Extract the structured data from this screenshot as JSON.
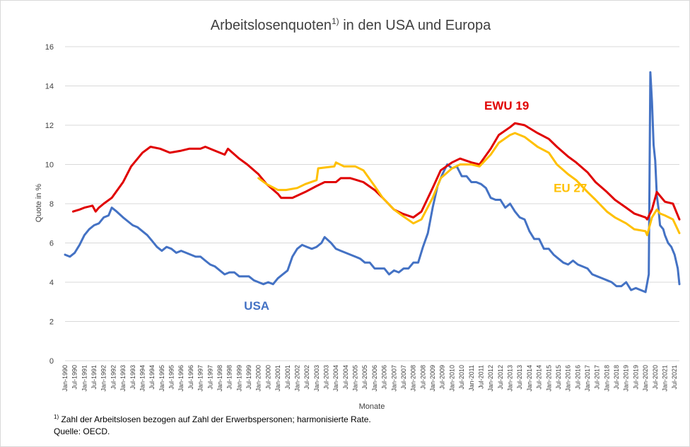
{
  "chart_data": {
    "type": "line",
    "title": "Arbeitslosenquoten",
    "title_sup": "1)",
    "title_suffix": " in den USA und Europa",
    "xlabel": "Monate",
    "ylabel": "Quote in %",
    "ylim": [
      0,
      16
    ],
    "yticks": [
      0,
      2,
      4,
      6,
      8,
      10,
      12,
      14,
      16
    ],
    "grid": "horizontal",
    "xtick_labels": [
      "Jan-1990",
      "Jul-1990",
      "Jan-1991",
      "Jul-1991",
      "Jan-1992",
      "Jul-1992",
      "Jan-1993",
      "Jul-1993",
      "Jan-1994",
      "Jul-1994",
      "Jan-1995",
      "Jul-1995",
      "Jan-1996",
      "Jul-1996",
      "Jan-1997",
      "Jul-1997",
      "Jan-1998",
      "Jul-1998",
      "Jan-1999",
      "Jul-1999",
      "Jan-2000",
      "Jul-2000",
      "Jan-2001",
      "Jul-2001",
      "Jan-2002",
      "Jul-2002",
      "Jan-2003",
      "Jul-2003",
      "Jan-2004",
      "Jul-2004",
      "Jan-2005",
      "Jul-2005",
      "Jan-2006",
      "Jul-2006",
      "Jan-2007",
      "Jul-2007",
      "Jan-2008",
      "Jul-2008",
      "Jan-2009",
      "Jul-2009",
      "Jan-2010",
      "Jul-2010",
      "Jan-2011",
      "Jul-2011",
      "Jan-2012",
      "Jul-2012",
      "Jan-2013",
      "Jul-2013",
      "Jan-2014",
      "Jul-2014",
      "Jan-2015",
      "Jul-2015",
      "Jan-2016",
      "Jul-2016",
      "Jan-2017",
      "Jul-2017",
      "Jan-2018",
      "Jul-2018",
      "Jan-2019",
      "Jul-2019",
      "Jan-2020",
      "Jul-2020",
      "Jan-2021",
      "Jul-2021"
    ],
    "x_start": "1990-01",
    "x_end": "2021-10",
    "series": [
      {
        "name": "USA",
        "color": "#4472c4",
        "points": [
          [
            "1990-01",
            5.4
          ],
          [
            "1990-04",
            5.3
          ],
          [
            "1990-07",
            5.5
          ],
          [
            "1990-10",
            5.9
          ],
          [
            "1991-01",
            6.4
          ],
          [
            "1991-04",
            6.7
          ],
          [
            "1991-07",
            6.9
          ],
          [
            "1991-10",
            7.0
          ],
          [
            "1992-01",
            7.3
          ],
          [
            "1992-04",
            7.4
          ],
          [
            "1992-06",
            7.8
          ],
          [
            "1992-09",
            7.6
          ],
          [
            "1993-01",
            7.3
          ],
          [
            "1993-04",
            7.1
          ],
          [
            "1993-07",
            6.9
          ],
          [
            "1993-10",
            6.8
          ],
          [
            "1994-01",
            6.6
          ],
          [
            "1994-04",
            6.4
          ],
          [
            "1994-07",
            6.1
          ],
          [
            "1994-10",
            5.8
          ],
          [
            "1995-01",
            5.6
          ],
          [
            "1995-04",
            5.8
          ],
          [
            "1995-07",
            5.7
          ],
          [
            "1995-10",
            5.5
          ],
          [
            "1996-01",
            5.6
          ],
          [
            "1996-04",
            5.5
          ],
          [
            "1996-07",
            5.4
          ],
          [
            "1996-10",
            5.3
          ],
          [
            "1997-01",
            5.3
          ],
          [
            "1997-04",
            5.1
          ],
          [
            "1997-07",
            4.9
          ],
          [
            "1997-10",
            4.8
          ],
          [
            "1998-01",
            4.6
          ],
          [
            "1998-04",
            4.4
          ],
          [
            "1998-07",
            4.5
          ],
          [
            "1998-10",
            4.5
          ],
          [
            "1999-01",
            4.3
          ],
          [
            "1999-04",
            4.3
          ],
          [
            "1999-07",
            4.3
          ],
          [
            "1999-10",
            4.1
          ],
          [
            "2000-01",
            4.0
          ],
          [
            "2000-04",
            3.9
          ],
          [
            "2000-07",
            4.0
          ],
          [
            "2000-10",
            3.9
          ],
          [
            "2001-01",
            4.2
          ],
          [
            "2001-04",
            4.4
          ],
          [
            "2001-07",
            4.6
          ],
          [
            "2001-10",
            5.3
          ],
          [
            "2002-01",
            5.7
          ],
          [
            "2002-04",
            5.9
          ],
          [
            "2002-07",
            5.8
          ],
          [
            "2002-10",
            5.7
          ],
          [
            "2003-01",
            5.8
          ],
          [
            "2003-04",
            6.0
          ],
          [
            "2003-06",
            6.3
          ],
          [
            "2003-10",
            6.0
          ],
          [
            "2004-01",
            5.7
          ],
          [
            "2004-04",
            5.6
          ],
          [
            "2004-07",
            5.5
          ],
          [
            "2004-10",
            5.4
          ],
          [
            "2005-01",
            5.3
          ],
          [
            "2005-04",
            5.2
          ],
          [
            "2005-07",
            5.0
          ],
          [
            "2005-10",
            5.0
          ],
          [
            "2006-01",
            4.7
          ],
          [
            "2006-04",
            4.7
          ],
          [
            "2006-07",
            4.7
          ],
          [
            "2006-10",
            4.4
          ],
          [
            "2007-01",
            4.6
          ],
          [
            "2007-04",
            4.5
          ],
          [
            "2007-07",
            4.7
          ],
          [
            "2007-10",
            4.7
          ],
          [
            "2008-01",
            5.0
          ],
          [
            "2008-04",
            5.0
          ],
          [
            "2008-07",
            5.8
          ],
          [
            "2008-10",
            6.5
          ],
          [
            "2009-01",
            7.8
          ],
          [
            "2009-04",
            8.9
          ],
          [
            "2009-07",
            9.5
          ],
          [
            "2009-10",
            10.0
          ],
          [
            "2010-01",
            9.8
          ],
          [
            "2010-04",
            9.9
          ],
          [
            "2010-07",
            9.4
          ],
          [
            "2010-10",
            9.4
          ],
          [
            "2011-01",
            9.1
          ],
          [
            "2011-04",
            9.1
          ],
          [
            "2011-07",
            9.0
          ],
          [
            "2011-10",
            8.8
          ],
          [
            "2012-01",
            8.3
          ],
          [
            "2012-04",
            8.2
          ],
          [
            "2012-07",
            8.2
          ],
          [
            "2012-10",
            7.8
          ],
          [
            "2013-01",
            8.0
          ],
          [
            "2013-04",
            7.6
          ],
          [
            "2013-07",
            7.3
          ],
          [
            "2013-10",
            7.2
          ],
          [
            "2014-01",
            6.6
          ],
          [
            "2014-04",
            6.2
          ],
          [
            "2014-07",
            6.2
          ],
          [
            "2014-10",
            5.7
          ],
          [
            "2015-01",
            5.7
          ],
          [
            "2015-04",
            5.4
          ],
          [
            "2015-07",
            5.2
          ],
          [
            "2015-10",
            5.0
          ],
          [
            "2016-01",
            4.9
          ],
          [
            "2016-04",
            5.1
          ],
          [
            "2016-07",
            4.9
          ],
          [
            "2016-10",
            4.8
          ],
          [
            "2017-01",
            4.7
          ],
          [
            "2017-04",
            4.4
          ],
          [
            "2017-07",
            4.3
          ],
          [
            "2017-10",
            4.2
          ],
          [
            "2018-01",
            4.1
          ],
          [
            "2018-04",
            4.0
          ],
          [
            "2018-07",
            3.8
          ],
          [
            "2018-10",
            3.8
          ],
          [
            "2019-01",
            4.0
          ],
          [
            "2019-04",
            3.6
          ],
          [
            "2019-07",
            3.7
          ],
          [
            "2019-10",
            3.6
          ],
          [
            "2020-01",
            3.5
          ],
          [
            "2020-03",
            4.4
          ],
          [
            "2020-04",
            14.7
          ],
          [
            "2020-05",
            13.2
          ],
          [
            "2020-06",
            11.0
          ],
          [
            "2020-07",
            10.2
          ],
          [
            "2020-08",
            8.4
          ],
          [
            "2020-09",
            7.8
          ],
          [
            "2020-10",
            6.9
          ],
          [
            "2020-12",
            6.7
          ],
          [
            "2021-01",
            6.4
          ],
          [
            "2021-03",
            6.0
          ],
          [
            "2021-05",
            5.8
          ],
          [
            "2021-07",
            5.4
          ],
          [
            "2021-09",
            4.7
          ],
          [
            "2021-10",
            3.9
          ]
        ]
      },
      {
        "name": "EWU 19",
        "color": "#e00000",
        "points": [
          [
            "1990-06",
            7.6
          ],
          [
            "1990-10",
            7.7
          ],
          [
            "1991-01",
            7.8
          ],
          [
            "1991-06",
            7.9
          ],
          [
            "1991-08",
            7.6
          ],
          [
            "1991-10",
            7.8
          ],
          [
            "1992-01",
            8.0
          ],
          [
            "1992-06",
            8.3
          ],
          [
            "1993-01",
            9.1
          ],
          [
            "1993-06",
            9.9
          ],
          [
            "1994-01",
            10.6
          ],
          [
            "1994-06",
            10.9
          ],
          [
            "1994-12",
            10.8
          ],
          [
            "1995-06",
            10.6
          ],
          [
            "1996-01",
            10.7
          ],
          [
            "1996-06",
            10.8
          ],
          [
            "1997-01",
            10.8
          ],
          [
            "1997-04",
            10.9
          ],
          [
            "1997-10",
            10.7
          ],
          [
            "1998-04",
            10.5
          ],
          [
            "1998-06",
            10.8
          ],
          [
            "1999-01",
            10.3
          ],
          [
            "1999-06",
            10.0
          ],
          [
            "2000-01",
            9.5
          ],
          [
            "2000-06",
            9.0
          ],
          [
            "2001-01",
            8.5
          ],
          [
            "2001-03",
            8.3
          ],
          [
            "2001-10",
            8.3
          ],
          [
            "2002-06",
            8.6
          ],
          [
            "2003-01",
            8.9
          ],
          [
            "2003-06",
            9.1
          ],
          [
            "2004-01",
            9.1
          ],
          [
            "2004-04",
            9.3
          ],
          [
            "2004-10",
            9.3
          ],
          [
            "2005-06",
            9.1
          ],
          [
            "2006-01",
            8.7
          ],
          [
            "2006-06",
            8.3
          ],
          [
            "2007-01",
            7.7
          ],
          [
            "2007-06",
            7.5
          ],
          [
            "2008-01",
            7.3
          ],
          [
            "2008-06",
            7.6
          ],
          [
            "2009-01",
            8.8
          ],
          [
            "2009-06",
            9.7
          ],
          [
            "2010-01",
            10.1
          ],
          [
            "2010-06",
            10.3
          ],
          [
            "2011-01",
            10.1
          ],
          [
            "2011-06",
            10.0
          ],
          [
            "2012-01",
            10.8
          ],
          [
            "2012-06",
            11.5
          ],
          [
            "2013-01",
            11.9
          ],
          [
            "2013-04",
            12.1
          ],
          [
            "2013-10",
            12.0
          ],
          [
            "2014-06",
            11.6
          ],
          [
            "2015-01",
            11.3
          ],
          [
            "2015-06",
            10.9
          ],
          [
            "2016-01",
            10.4
          ],
          [
            "2016-06",
            10.1
          ],
          [
            "2017-01",
            9.6
          ],
          [
            "2017-06",
            9.1
          ],
          [
            "2018-01",
            8.6
          ],
          [
            "2018-06",
            8.2
          ],
          [
            "2019-01",
            7.8
          ],
          [
            "2019-06",
            7.5
          ],
          [
            "2020-01",
            7.3
          ],
          [
            "2020-02",
            7.2
          ],
          [
            "2020-05",
            7.7
          ],
          [
            "2020-08",
            8.6
          ],
          [
            "2020-10",
            8.4
          ],
          [
            "2021-01",
            8.1
          ],
          [
            "2021-06",
            8.0
          ],
          [
            "2021-10",
            7.2
          ]
        ]
      },
      {
        "name": "EU 27",
        "color": "#ffc000",
        "points": [
          [
            "2000-01",
            9.3
          ],
          [
            "2000-06",
            9.0
          ],
          [
            "2001-01",
            8.7
          ],
          [
            "2001-06",
            8.7
          ],
          [
            "2002-01",
            8.8
          ],
          [
            "2002-06",
            9.0
          ],
          [
            "2003-01",
            9.2
          ],
          [
            "2003-02",
            9.8
          ],
          [
            "2003-12",
            9.9
          ],
          [
            "2004-01",
            10.1
          ],
          [
            "2004-06",
            9.9
          ],
          [
            "2005-01",
            9.9
          ],
          [
            "2005-06",
            9.7
          ],
          [
            "2006-01",
            8.9
          ],
          [
            "2006-06",
            8.3
          ],
          [
            "2007-01",
            7.7
          ],
          [
            "2007-06",
            7.4
          ],
          [
            "2008-01",
            7.0
          ],
          [
            "2008-06",
            7.2
          ],
          [
            "2009-01",
            8.3
          ],
          [
            "2009-06",
            9.3
          ],
          [
            "2010-01",
            9.8
          ],
          [
            "2010-06",
            10.0
          ],
          [
            "2011-01",
            10.0
          ],
          [
            "2011-06",
            9.9
          ],
          [
            "2012-01",
            10.5
          ],
          [
            "2012-06",
            11.1
          ],
          [
            "2013-01",
            11.5
          ],
          [
            "2013-04",
            11.6
          ],
          [
            "2013-10",
            11.4
          ],
          [
            "2014-06",
            10.9
          ],
          [
            "2015-01",
            10.6
          ],
          [
            "2015-06",
            10.0
          ],
          [
            "2016-01",
            9.5
          ],
          [
            "2016-06",
            9.2
          ],
          [
            "2017-01",
            8.6
          ],
          [
            "2017-06",
            8.2
          ],
          [
            "2018-01",
            7.6
          ],
          [
            "2018-06",
            7.3
          ],
          [
            "2019-01",
            7.0
          ],
          [
            "2019-06",
            6.7
          ],
          [
            "2020-01",
            6.6
          ],
          [
            "2020-02",
            6.4
          ],
          [
            "2020-05",
            7.3
          ],
          [
            "2020-08",
            7.7
          ],
          [
            "2020-10",
            7.5
          ],
          [
            "2021-01",
            7.4
          ],
          [
            "2021-06",
            7.2
          ],
          [
            "2021-10",
            6.5
          ]
        ]
      }
    ],
    "series_labels": [
      {
        "text": "USA",
        "color": "#4472c4",
        "at": [
          "1999-04",
          2.6
        ]
      },
      {
        "text": "EWU 19",
        "color": "#e00000",
        "at": [
          "2011-09",
          12.8
        ]
      },
      {
        "text": "EU 27",
        "color": "#ffc000",
        "at": [
          "2015-04",
          8.6
        ]
      }
    ]
  },
  "footnotes": {
    "note_sup": "1)",
    "note_text": " Zahl der Arbeitslosen bezogen auf Zahl der Erwerbspersonen; harmonisierte Rate.",
    "source": "Quelle: OECD."
  }
}
